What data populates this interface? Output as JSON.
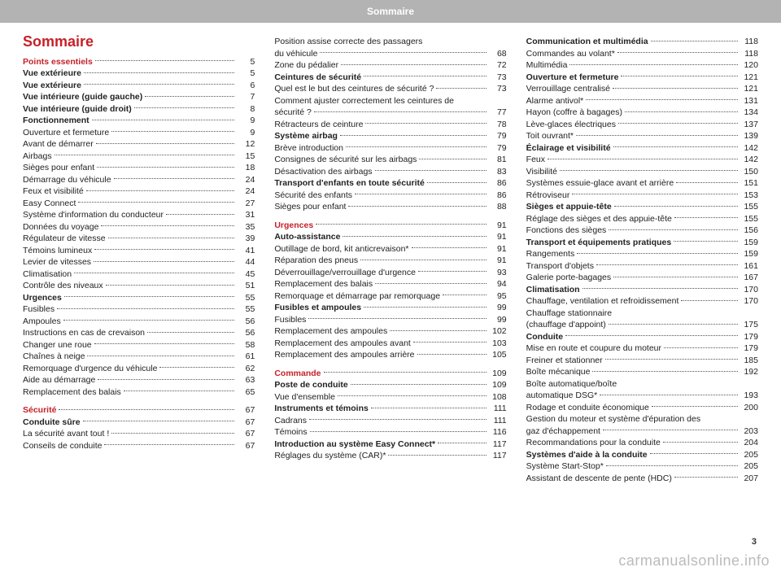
{
  "meta": {
    "header": "Sommaire",
    "title": "Sommaire",
    "page_number": "3",
    "watermark": "carmanualsonline.info",
    "colors": {
      "accent": "#c62128",
      "header_bg": "#b3b3b3",
      "text": "#222222"
    },
    "fonts": {
      "body_size_pt": 10.5,
      "title_size_pt": 18
    }
  },
  "columns": [
    [
      {
        "t": "Points essentiels",
        "p": "5",
        "style": "sect"
      },
      {
        "t": "Vue extérieure",
        "p": "5",
        "style": "bold"
      },
      {
        "t": "Vue extérieure",
        "p": "6",
        "style": "bold"
      },
      {
        "t": "Vue intérieure (guide gauche)",
        "p": "7",
        "style": "bold"
      },
      {
        "t": "Vue intérieure (guide droit)",
        "p": "8",
        "style": "bold"
      },
      {
        "t": "Fonctionnement",
        "p": "9",
        "style": "bold"
      },
      {
        "t": "Ouverture et fermeture",
        "p": "9"
      },
      {
        "t": "Avant de démarrer",
        "p": "12"
      },
      {
        "t": "Airbags",
        "p": "15"
      },
      {
        "t": "Sièges pour enfant",
        "p": "18"
      },
      {
        "t": "Démarrage du véhicule",
        "p": "24"
      },
      {
        "t": "Feux et visibilité",
        "p": "24"
      },
      {
        "t": "Easy Connect",
        "p": "27"
      },
      {
        "t": "Système d'information du conducteur",
        "p": "31"
      },
      {
        "t": "Données du voyage",
        "p": "35"
      },
      {
        "t": "Régulateur de vitesse",
        "p": "39"
      },
      {
        "t": "Témoins lumineux",
        "p": "41"
      },
      {
        "t": "Levier de vitesses",
        "p": "44"
      },
      {
        "t": "Climatisation",
        "p": "45"
      },
      {
        "t": "Contrôle des niveaux",
        "p": "51"
      },
      {
        "t": "Urgences",
        "p": "55",
        "style": "bold"
      },
      {
        "t": "Fusibles",
        "p": "55"
      },
      {
        "t": "Ampoules",
        "p": "56"
      },
      {
        "t": "Instructions en cas de crevaison",
        "p": "56"
      },
      {
        "t": "Changer une roue",
        "p": "58"
      },
      {
        "t": "Chaînes à neige",
        "p": "61"
      },
      {
        "t": "Remorquage d'urgence du véhicule",
        "p": "62"
      },
      {
        "t": "Aide au démarrage",
        "p": "63"
      },
      {
        "t": "Remplacement des balais",
        "p": "65"
      },
      {
        "t": "Sécurité",
        "p": "67",
        "style": "sect",
        "gap": true
      },
      {
        "t": "Conduite sûre",
        "p": "67",
        "style": "bold"
      },
      {
        "t": "La sécurité avant tout !",
        "p": "67"
      },
      {
        "t": "Conseils de conduite",
        "p": "67"
      }
    ],
    [
      {
        "t": "Position assise correcte des passagers du véhicule",
        "p": "68",
        "wrap": true
      },
      {
        "t": "Zone du pédalier",
        "p": "72"
      },
      {
        "t": "Ceintures de sécurité",
        "p": "73",
        "style": "bold"
      },
      {
        "t": "Quel est le but des ceintures de sécurité ?",
        "p": "73"
      },
      {
        "t": "Comment ajuster correctement les ceintures de sécurité ?",
        "p": "77",
        "wrap": true
      },
      {
        "t": "Rétracteurs de ceinture",
        "p": "78"
      },
      {
        "t": "Système airbag",
        "p": "79",
        "style": "bold"
      },
      {
        "t": "Brève introduction",
        "p": "79"
      },
      {
        "t": "Consignes de sécurité sur les airbags",
        "p": "81"
      },
      {
        "t": "Désactivation des airbags",
        "p": "83"
      },
      {
        "t": "Transport d'enfants en toute sécurité",
        "p": "86",
        "style": "bold"
      },
      {
        "t": "Sécurité des enfants",
        "p": "86"
      },
      {
        "t": "Sièges pour enfant",
        "p": "88"
      },
      {
        "t": "Urgences",
        "p": "91",
        "style": "sect",
        "gap": true
      },
      {
        "t": "Auto-assistance",
        "p": "91",
        "style": "bold"
      },
      {
        "t": "Outillage de bord, kit anticrevaison*",
        "p": "91"
      },
      {
        "t": "Réparation des pneus",
        "p": "91"
      },
      {
        "t": "Déverrouillage/verrouillage d'urgence",
        "p": "93"
      },
      {
        "t": "Remplacement des balais",
        "p": "94"
      },
      {
        "t": "Remorquage et démarrage par remorquage",
        "p": "95"
      },
      {
        "t": "Fusibles et ampoules",
        "p": "99",
        "style": "bold"
      },
      {
        "t": "Fusibles",
        "p": "99"
      },
      {
        "t": "Remplacement des ampoules",
        "p": "102"
      },
      {
        "t": "Remplacement des ampoules avant",
        "p": "103"
      },
      {
        "t": "Remplacement des ampoules arrière",
        "p": "105"
      },
      {
        "t": "Commande",
        "p": "109",
        "style": "sect",
        "gap": true
      },
      {
        "t": "Poste de conduite",
        "p": "109",
        "style": "bold"
      },
      {
        "t": "Vue d'ensemble",
        "p": "108"
      },
      {
        "t": "Instruments et témoins",
        "p": "111",
        "style": "bold"
      },
      {
        "t": "Cadrans",
        "p": "111"
      },
      {
        "t": "Témoins",
        "p": "116"
      },
      {
        "t": "Introduction au système Easy Connect*",
        "p": "117",
        "style": "bold"
      },
      {
        "t": "Réglages du système (CAR)*",
        "p": "117"
      }
    ],
    [
      {
        "t": "Communication et multimédia",
        "p": "118",
        "style": "bold"
      },
      {
        "t": "Commandes au volant*",
        "p": "118"
      },
      {
        "t": "Multimédia",
        "p": "120"
      },
      {
        "t": "Ouverture et fermeture",
        "p": "121",
        "style": "bold"
      },
      {
        "t": "Verrouillage centralisé",
        "p": "121"
      },
      {
        "t": "Alarme antivol*",
        "p": "131"
      },
      {
        "t": "Hayon (coffre à bagages)",
        "p": "134"
      },
      {
        "t": "Lève-glaces électriques",
        "p": "137"
      },
      {
        "t": "Toit ouvrant*",
        "p": "139"
      },
      {
        "t": "Éclairage et visibilité",
        "p": "142",
        "style": "bold"
      },
      {
        "t": "Feux",
        "p": "142"
      },
      {
        "t": "Visibilité",
        "p": "150"
      },
      {
        "t": "Systèmes essuie-glace avant et arrière",
        "p": "151"
      },
      {
        "t": "Rétroviseur",
        "p": "153"
      },
      {
        "t": "Sièges et appuie-tête",
        "p": "155",
        "style": "bold"
      },
      {
        "t": "Réglage des sièges et des appuie-tête",
        "p": "155"
      },
      {
        "t": "Fonctions des sièges",
        "p": "156"
      },
      {
        "t": "Transport et équipements pratiques",
        "p": "159",
        "style": "bold"
      },
      {
        "t": "Rangements",
        "p": "159"
      },
      {
        "t": "Transport d'objets",
        "p": "161"
      },
      {
        "t": "Galerie porte-bagages",
        "p": "167"
      },
      {
        "t": "Climatisation",
        "p": "170",
        "style": "bold"
      },
      {
        "t": "Chauffage, ventilation et refroidissement",
        "p": "170"
      },
      {
        "t": "Chauffage stationnaire (chauffage d'appoint)",
        "p": "175",
        "wrap": true
      },
      {
        "t": "Conduite",
        "p": "179",
        "style": "bold"
      },
      {
        "t": "Mise en route et coupure du moteur",
        "p": "179"
      },
      {
        "t": "Freiner et stationner",
        "p": "185"
      },
      {
        "t": "Boîte mécanique",
        "p": "192"
      },
      {
        "t": "Boîte automatique/boîte automatique DSG*",
        "p": "193",
        "wrap": true
      },
      {
        "t": "Rodage et conduite économique",
        "p": "200"
      },
      {
        "t": "Gestion du moteur et système d'épuration des gaz d'échappement",
        "p": "203",
        "wrap": true
      },
      {
        "t": "Recommandations pour la conduite",
        "p": "204"
      },
      {
        "t": "Systèmes d'aide à la conduite",
        "p": "205",
        "style": "bold"
      },
      {
        "t": "Système Start-Stop*",
        "p": "205"
      },
      {
        "t": "Assistant de descente de pente (HDC)",
        "p": "207"
      }
    ]
  ]
}
